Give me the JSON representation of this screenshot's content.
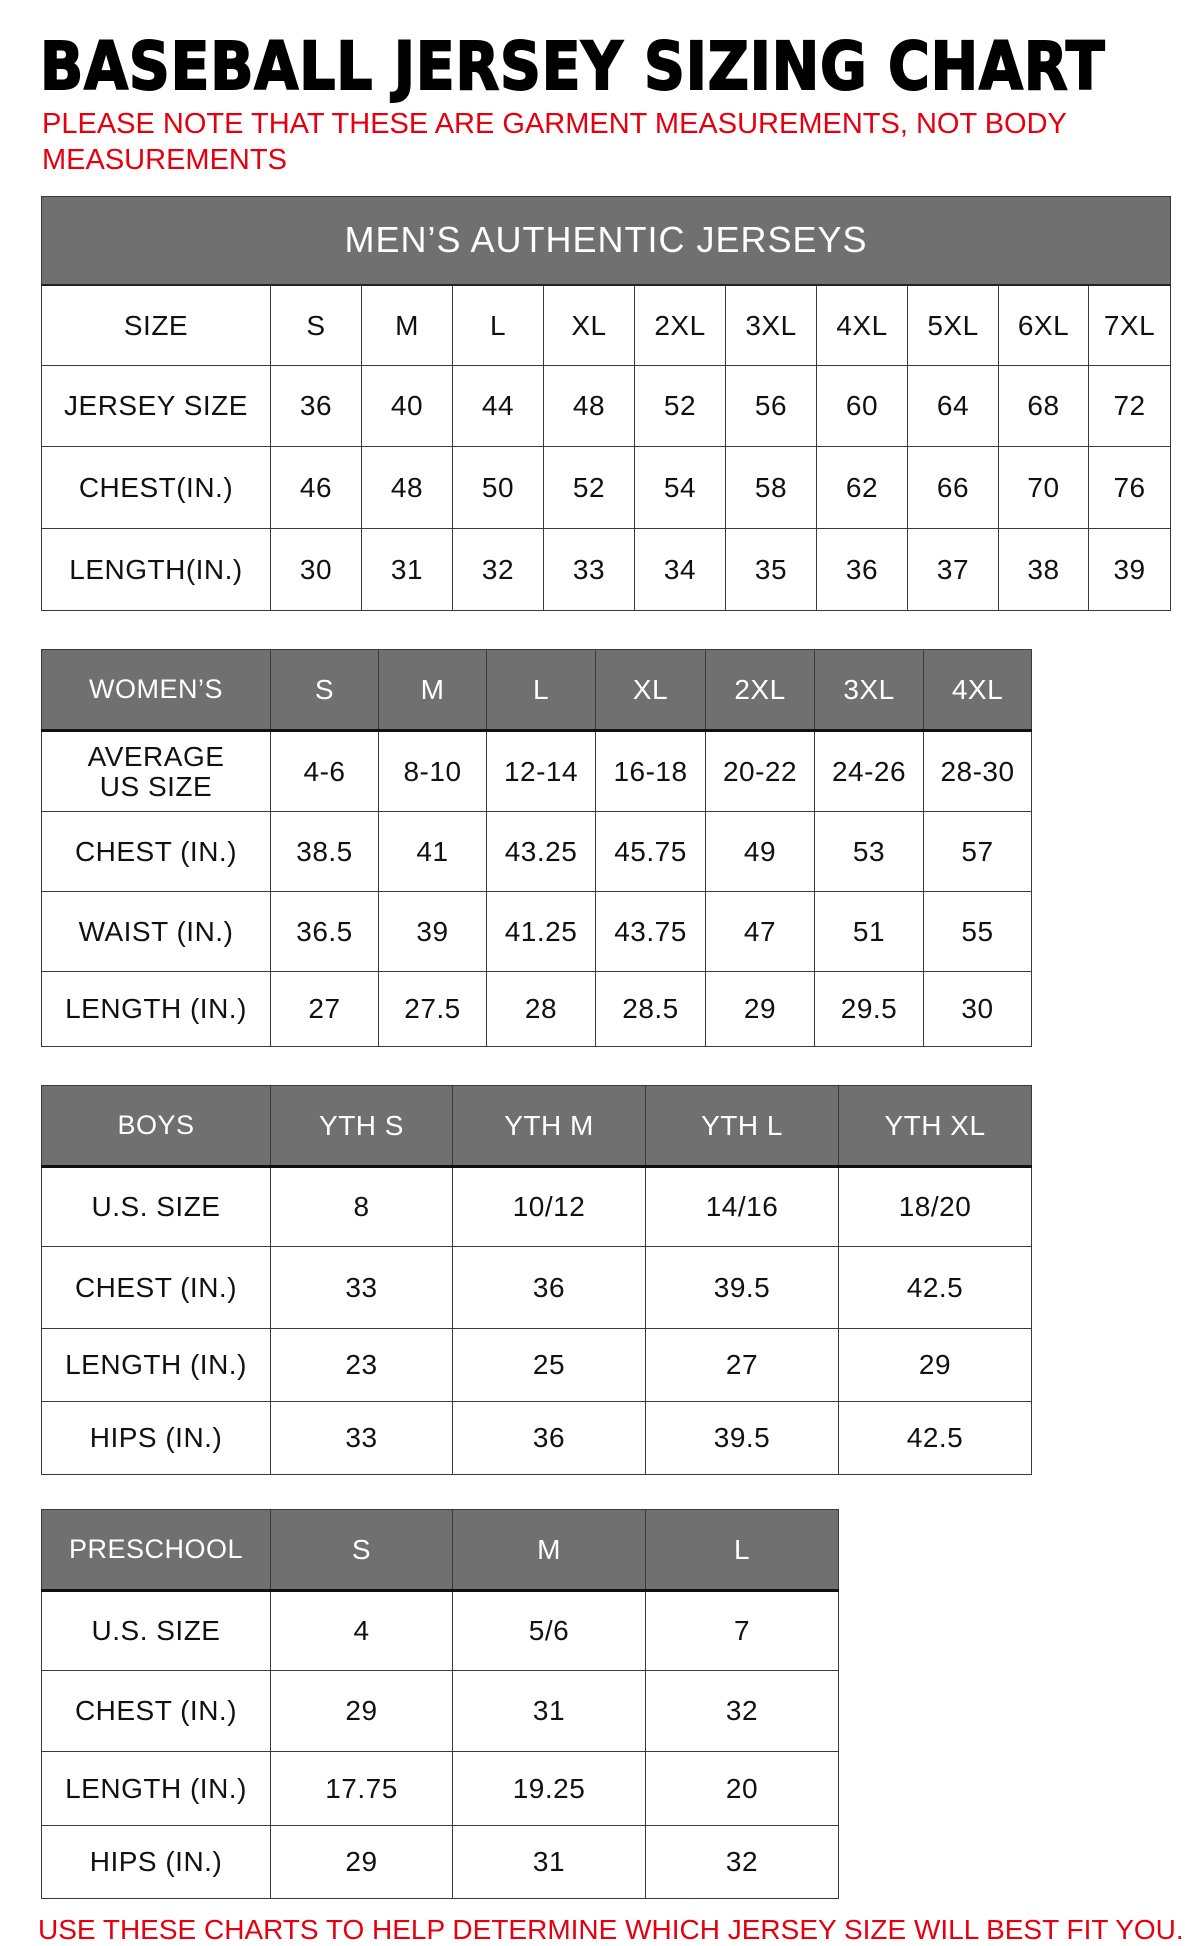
{
  "title": "BASEBALL JERSEY SIZING CHART",
  "note_line1": "PLEASE NOTE THAT THESE ARE GARMENT MEASUREMENTS, NOT BODY",
  "note_line2": "MEASUREMENTS",
  "footer_note": "USE THESE CHARTS TO HELP DETERMINE WHICH JERSEY SIZE WILL BEST FIT YOU.",
  "colors": {
    "header_bg": "#707070",
    "note_red": "#e6000f"
  },
  "tables": [
    {
      "caption": "MEN’S AUTHENTIC JERSEYS",
      "header": [
        "SIZE",
        "S",
        "M",
        "L",
        "XL",
        "2XL",
        "3XL",
        "4XL",
        "5XL",
        "6XL",
        "7XL"
      ],
      "rows": [
        [
          "JERSEY SIZE",
          "36",
          "40",
          "44",
          "48",
          "52",
          "56",
          "60",
          "64",
          "68",
          "72"
        ],
        [
          "CHEST(IN.)",
          "46",
          "48",
          "50",
          "52",
          "54",
          "58",
          "62",
          "66",
          "70",
          "76"
        ],
        [
          "LENGTH(IN.)",
          "30",
          "31",
          "32",
          "33",
          "34",
          "35",
          "36",
          "37",
          "38",
          "39"
        ]
      ]
    },
    {
      "header": [
        "WOMEN’S",
        "S",
        "M",
        "L",
        "XL",
        "2XL",
        "3XL",
        "4XL"
      ],
      "rows": [
        [
          "AVERAGE\nUS SIZE",
          "4-6",
          "8-10",
          "12-14",
          "16-18",
          "20-22",
          "24-26",
          "28-30"
        ],
        [
          "CHEST (IN.)",
          "38.5",
          "41",
          "43.25",
          "45.75",
          "49",
          "53",
          "57"
        ],
        [
          "WAIST (IN.)",
          "36.5",
          "39",
          "41.25",
          "43.75",
          "47",
          "51",
          "55"
        ],
        [
          "LENGTH (IN.)",
          "27",
          "27.5",
          "28",
          "28.5",
          "29",
          "29.5",
          "30"
        ]
      ]
    },
    {
      "header": [
        "BOYS",
        "YTH S",
        "YTH M",
        "YTH L",
        "YTH XL"
      ],
      "rows": [
        [
          "U.S. SIZE",
          "8",
          "10/12",
          "14/16",
          "18/20"
        ],
        [
          "CHEST (IN.)",
          "33",
          "36",
          "39.5",
          "42.5"
        ],
        [
          "LENGTH (IN.)",
          "23",
          "25",
          "27",
          "29"
        ],
        [
          "HIPS (IN.)",
          "33",
          "36",
          "39.5",
          "42.5"
        ]
      ]
    },
    {
      "header": [
        "PRESCHOOL",
        "S",
        "M",
        "L"
      ],
      "rows": [
        [
          "U.S. SIZE",
          "4",
          "5/6",
          "7"
        ],
        [
          "CHEST (IN.)",
          "29",
          "31",
          "32"
        ],
        [
          "LENGTH (IN.)",
          "17.75",
          "19.25",
          "20"
        ],
        [
          "HIPS (IN.)",
          "29",
          "31",
          "32"
        ]
      ]
    }
  ]
}
